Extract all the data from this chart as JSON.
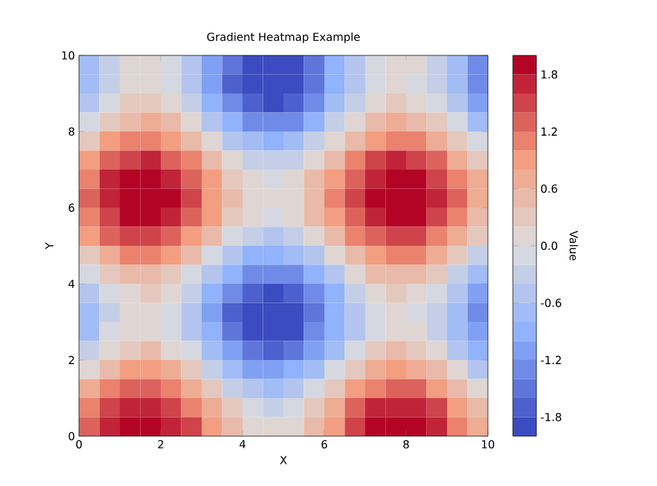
{
  "chart_data": {
    "type": "heatmap",
    "title": "Gradient Heatmap Example",
    "xlabel": "X",
    "ylabel": "Y",
    "clabel": "Value",
    "xlim": [
      0,
      10
    ],
    "ylim": [
      0,
      10
    ],
    "xticks": [
      0,
      2,
      4,
      6,
      8,
      10
    ],
    "yticks": [
      0,
      2,
      4,
      6,
      8,
      10
    ],
    "clim": [
      -2,
      2
    ],
    "cticks": [
      -1.8,
      -1.2,
      -0.6,
      {
        "value": 0,
        "label": "0.0"
      },
      0.6,
      1.2,
      1.8
    ],
    "cells": [
      [
        -0.7,
        -0.3,
        0.0,
        0.0,
        -0.2,
        -0.6,
        -1.1,
        -1.5,
        -1.8,
        -1.9,
        -1.8,
        -1.5,
        -1.0,
        -0.5,
        -0.1,
        0.1,
        0.0,
        -0.3,
        -0.8,
        -1.3
      ],
      [
        -0.7,
        -0.3,
        0.0,
        0.0,
        -0.2,
        -0.6,
        -1.1,
        -1.6,
        -1.9,
        -2.0,
        -1.8,
        -1.5,
        -1.0,
        -0.5,
        -0.2,
        0.0,
        -0.1,
        -0.4,
        -0.8,
        -1.3
      ],
      [
        -0.5,
        -0.1,
        0.2,
        0.2,
        0.0,
        -0.4,
        -0.9,
        -1.4,
        -1.7,
        -1.8,
        -1.6,
        -1.3,
        -0.8,
        -0.3,
        0.0,
        0.2,
        0.1,
        -0.2,
        -0.6,
        -1.1
      ],
      [
        -0.2,
        0.3,
        0.5,
        0.6,
        0.4,
        0.0,
        -0.5,
        -1.0,
        -1.3,
        -1.4,
        -1.3,
        -0.9,
        -0.4,
        0.1,
        0.4,
        0.6,
        0.5,
        0.2,
        -0.2,
        -0.7
      ],
      [
        0.3,
        0.8,
        1.0,
        1.1,
        0.9,
        0.5,
        0.0,
        -0.5,
        -0.8,
        -0.9,
        -0.8,
        -0.4,
        0.0,
        0.5,
        0.9,
        1.1,
        1.0,
        0.7,
        0.3,
        -0.2
      ],
      [
        0.8,
        1.3,
        1.5,
        1.6,
        1.3,
        1.0,
        0.5,
        0.0,
        -0.3,
        -0.4,
        -0.3,
        0.1,
        0.5,
        1.0,
        1.4,
        1.6,
        1.5,
        1.2,
        0.7,
        0.3
      ],
      [
        1.1,
        1.6,
        1.8,
        1.9,
        1.7,
        1.3,
        0.8,
        0.3,
        0.0,
        -0.1,
        0.0,
        0.4,
        0.9,
        1.3,
        1.7,
        1.9,
        1.8,
        1.5,
        1.1,
        0.6
      ],
      [
        1.2,
        1.7,
        1.9,
        2.0,
        1.8,
        1.4,
        0.9,
        0.4,
        0.1,
        0.0,
        0.1,
        0.5,
        1.0,
        1.5,
        1.8,
        2.0,
        1.9,
        1.6,
        1.2,
        0.7
      ],
      [
        1.1,
        1.5,
        1.8,
        1.8,
        1.6,
        1.2,
        0.8,
        0.3,
        0.0,
        -0.1,
        0.0,
        0.4,
        0.8,
        1.3,
        1.7,
        1.9,
        1.8,
        1.5,
        1.0,
        0.5
      ],
      [
        0.8,
        1.2,
        1.5,
        1.5,
        1.3,
        0.9,
        0.4,
        -0.1,
        -0.4,
        -0.5,
        -0.3,
        0.0,
        0.5,
        1.0,
        1.3,
        1.5,
        1.4,
        1.1,
        0.7,
        0.2
      ],
      [
        0.3,
        0.7,
        1.0,
        1.0,
        0.8,
        0.4,
        -0.1,
        -0.5,
        -0.9,
        -1.0,
        -0.8,
        -0.5,
        0.0,
        0.5,
        0.9,
        1.0,
        1.0,
        0.7,
        0.2,
        -0.3
      ],
      [
        -0.2,
        0.2,
        0.5,
        0.5,
        0.3,
        -0.1,
        -0.6,
        -1.0,
        -1.3,
        -1.4,
        -1.3,
        -1.0,
        -0.5,
        0.0,
        0.4,
        0.5,
        0.5,
        0.2,
        -0.3,
        -0.8
      ],
      [
        -0.6,
        -0.1,
        0.1,
        0.2,
        0.0,
        -0.4,
        -0.9,
        -1.4,
        -1.7,
        -1.8,
        -1.7,
        -1.3,
        -0.9,
        -0.4,
        0.0,
        0.2,
        0.1,
        -0.2,
        -0.6,
        -1.1
      ],
      [
        -0.7,
        -0.3,
        0.0,
        0.0,
        -0.2,
        -0.6,
        -1.1,
        -1.6,
        -1.9,
        -2.0,
        -1.9,
        -1.5,
        -1.0,
        -0.5,
        -0.2,
        0.0,
        -0.1,
        -0.4,
        -0.8,
        -1.3
      ],
      [
        -0.7,
        -0.2,
        0.0,
        0.1,
        -0.1,
        -0.5,
        -1.0,
        -1.5,
        -1.8,
        -1.9,
        -1.8,
        -1.4,
        -1.0,
        -0.5,
        -0.1,
        0.1,
        0.0,
        -0.3,
        -0.8,
        -1.2
      ],
      [
        -0.4,
        0.1,
        0.3,
        0.4,
        0.1,
        -0.2,
        -0.7,
        -1.2,
        -1.5,
        -1.6,
        -1.5,
        -1.1,
        -0.7,
        -0.2,
        0.2,
        0.4,
        0.3,
        0.0,
        -0.5,
        -0.9
      ],
      [
        0.1,
        0.5,
        0.8,
        0.8,
        0.6,
        0.2,
        -0.3,
        -0.8,
        -1.1,
        -1.2,
        -1.0,
        -0.7,
        -0.2,
        0.3,
        0.6,
        0.8,
        0.7,
        0.4,
        0.0,
        -0.5
      ],
      [
        0.6,
        1.0,
        1.3,
        1.3,
        1.1,
        0.7,
        0.2,
        -0.3,
        -0.6,
        -0.7,
        -0.5,
        -0.2,
        0.3,
        0.8,
        1.1,
        1.3,
        1.2,
        0.9,
        0.5,
        0.0
      ],
      [
        1.0,
        1.4,
        1.7,
        1.7,
        1.5,
        1.1,
        0.6,
        0.2,
        -0.2,
        -0.3,
        -0.1,
        0.2,
        0.7,
        1.2,
        1.6,
        1.7,
        1.6,
        1.4,
        0.9,
        0.4
      ],
      [
        1.2,
        1.7,
        1.9,
        2.0,
        1.7,
        1.4,
        0.9,
        0.4,
        0.1,
        0.0,
        0.1,
        0.5,
        0.9,
        1.4,
        1.8,
        2.0,
        1.9,
        1.6,
        1.1,
        0.7
      ]
    ]
  }
}
